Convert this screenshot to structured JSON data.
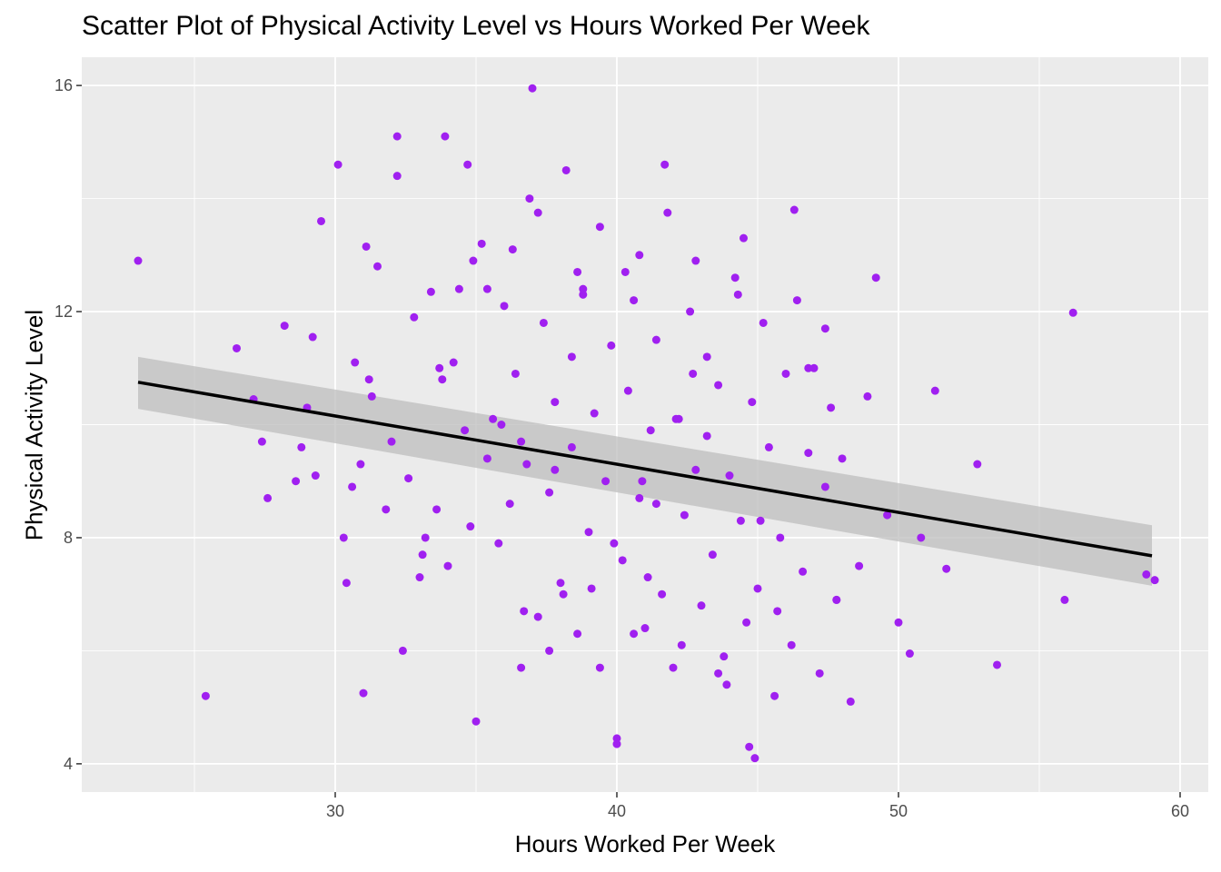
{
  "chart_data": {
    "type": "scatter",
    "title": "Scatter Plot of Physical Activity Level vs Hours Worked Per Week",
    "xlabel": "Hours Worked Per Week",
    "ylabel": "Physical Activity Level",
    "xlim": [
      21,
      61
    ],
    "ylim": [
      3.5,
      16.5
    ],
    "x_ticks": [
      30,
      40,
      50,
      60
    ],
    "y_ticks": [
      4,
      8,
      12,
      16
    ],
    "x_tick_labels": [
      "30",
      "40",
      "50",
      "60"
    ],
    "y_tick_labels": [
      "4",
      "8",
      "12",
      "16"
    ],
    "grid": true,
    "legend": "none",
    "point_color": "#a020f0",
    "trend_line": {
      "color": "#000000",
      "band_color": "#bdbdbd",
      "x": [
        23.0,
        59.0
      ],
      "y": [
        10.75,
        7.68
      ],
      "band_low": [
        10.28,
        7.15
      ],
      "band_high": [
        11.2,
        8.22
      ]
    },
    "series": [
      {
        "x": [
          23.0,
          25.4,
          26.5,
          27.1,
          27.4,
          27.6,
          28.2,
          28.6,
          28.8,
          29.0,
          29.2,
          29.3,
          29.5,
          30.1,
          30.3,
          30.4,
          30.6,
          30.7,
          30.9,
          31.0,
          31.1,
          31.3,
          31.5,
          31.8,
          32.0,
          32.2,
          32.4,
          32.6,
          32.8,
          33.0,
          33.2,
          33.4,
          33.6,
          33.8,
          34.0,
          34.2,
          34.4,
          34.6,
          34.8,
          35.0,
          35.2,
          35.4,
          35.6,
          35.8,
          36.0,
          36.2,
          36.4,
          36.6,
          36.8,
          37.0,
          37.2,
          37.4,
          37.6,
          37.8,
          38.0,
          38.2,
          38.4,
          38.6,
          38.8,
          39.0,
          39.2,
          39.4,
          39.6,
          39.8,
          40.0,
          40.2,
          40.4,
          40.6,
          40.8,
          41.0,
          41.2,
          41.4,
          41.6,
          41.8,
          42.0,
          42.2,
          42.4,
          42.6,
          42.8,
          43.0,
          43.2,
          43.4,
          43.6,
          43.8,
          44.0,
          44.2,
          44.4,
          44.6,
          44.8,
          45.0,
          45.2,
          45.4,
          45.6,
          45.8,
          46.0,
          46.2,
          46.4,
          46.6,
          46.8,
          47.0,
          47.2,
          47.4,
          47.6,
          47.8,
          48.0,
          48.3,
          48.6,
          48.9,
          49.2,
          49.6,
          50.0,
          50.4,
          50.8,
          51.3,
          51.7,
          52.8,
          53.5,
          55.9,
          56.2,
          58.8,
          59.1,
          32.2,
          33.9,
          34.7,
          36.9,
          40.0,
          40.8,
          35.4,
          37.2,
          38.6,
          39.4,
          41.7,
          42.8,
          44.5,
          46.3,
          47.4,
          44.9,
          31.2,
          33.1,
          36.7,
          38.1,
          40.6,
          42.3,
          43.9,
          45.7,
          47.8,
          33.7,
          35.9,
          37.8,
          39.9,
          41.4,
          43.2,
          45.1,
          34.9,
          36.3,
          38.8,
          40.3,
          42.7,
          44.3,
          46.8,
          37.6,
          39.1,
          41.1,
          43.6,
          36.6,
          38.4,
          40.9,
          42.1,
          44.7
        ],
        "y": [
          12.9,
          5.2,
          11.35,
          10.45,
          9.7,
          8.7,
          11.75,
          9.0,
          9.6,
          10.3,
          11.55,
          9.1,
          13.6,
          14.6,
          8.0,
          7.2,
          8.9,
          11.1,
          9.3,
          5.25,
          13.15,
          10.5,
          12.8,
          8.5,
          9.7,
          15.1,
          6.0,
          9.05,
          11.9,
          7.3,
          8.0,
          12.35,
          8.5,
          10.8,
          7.5,
          11.1,
          12.4,
          9.9,
          8.2,
          4.75,
          13.2,
          9.4,
          10.1,
          7.9,
          12.1,
          8.6,
          10.9,
          5.7,
          9.3,
          15.95,
          6.6,
          11.8,
          8.8,
          10.4,
          7.2,
          14.5,
          9.6,
          6.3,
          12.3,
          8.1,
          10.2,
          5.7,
          9.0,
          11.4,
          4.35,
          7.6,
          10.6,
          12.2,
          8.7,
          6.4,
          9.9,
          11.5,
          7.0,
          13.75,
          5.7,
          10.1,
          8.4,
          12.0,
          9.2,
          6.8,
          11.2,
          7.7,
          10.7,
          5.9,
          9.1,
          12.6,
          8.3,
          6.5,
          10.4,
          7.1,
          11.8,
          9.6,
          5.2,
          8.0,
          10.9,
          6.1,
          12.2,
          7.4,
          9.5,
          11.0,
          5.6,
          8.9,
          10.3,
          6.9,
          9.4,
          5.1,
          7.5,
          10.5,
          12.6,
          8.4,
          6.5,
          5.95,
          8.0,
          10.6,
          7.45,
          9.3,
          5.75,
          6.9,
          11.98,
          7.35,
          7.25,
          14.4,
          15.1,
          14.6,
          14.0,
          4.45,
          13.0,
          12.4,
          13.75,
          12.7,
          13.5,
          14.6,
          12.9,
          13.3,
          13.8,
          11.7,
          4.1,
          10.8,
          7.7,
          6.7,
          7.0,
          6.3,
          6.1,
          5.4,
          6.7,
          6.9,
          11.0,
          10.0,
          9.2,
          7.9,
          8.6,
          9.8,
          8.3,
          12.9,
          13.1,
          12.4,
          12.7,
          10.9,
          12.3,
          11.0,
          6.0,
          7.1,
          7.3,
          5.6,
          9.7,
          11.2,
          9.0,
          10.1,
          4.3
        ]
      }
    ]
  }
}
